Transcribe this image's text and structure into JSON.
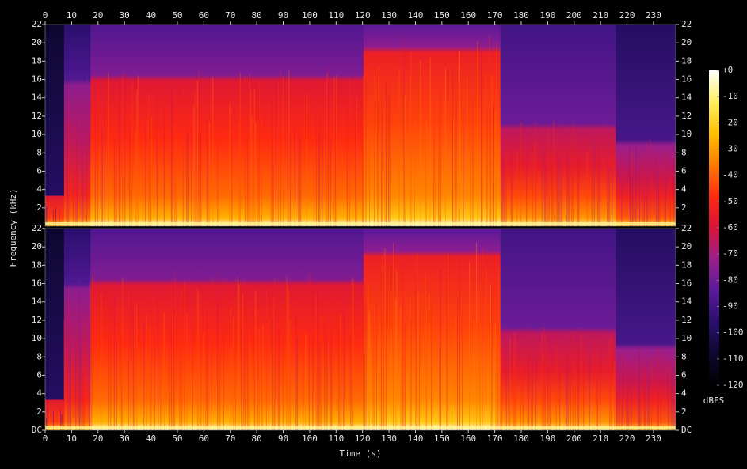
{
  "chart_data": {
    "type": "spectrogram",
    "x_label": "Time (s)",
    "y_label": "Frequency (kHz)",
    "xlim": [
      0,
      238.4
    ],
    "xticks": [
      0,
      10,
      20,
      30,
      40,
      50,
      60,
      70,
      80,
      90,
      100,
      110,
      120,
      130,
      140,
      150,
      160,
      170,
      180,
      190,
      200,
      210,
      220,
      230
    ],
    "panels": [
      {
        "ylim": [
          0,
          22
        ],
        "yticks": [
          2,
          4,
          6,
          8,
          10,
          12,
          14,
          16,
          18,
          20,
          22
        ]
      },
      {
        "ylim": [
          0,
          22
        ],
        "yticks": [
          {
            "value": 0,
            "label": "DC"
          },
          2,
          4,
          6,
          8,
          10,
          12,
          14,
          16,
          18,
          20,
          22
        ]
      }
    ],
    "colorbar": {
      "label": "dBFS",
      "lim": [
        -120,
        0
      ],
      "ticks": [
        {
          "value": 0,
          "label": "+0"
        },
        -10,
        -20,
        -30,
        -40,
        -50,
        -60,
        -70,
        -80,
        -90,
        -100,
        -110,
        -120
      ],
      "colormap": [
        "#000000",
        "#0e0830",
        "#2a0f6e",
        "#5a1a9a",
        "#9a1e8c",
        "#d8143a",
        "#ff2a10",
        "#ff7a00",
        "#ffc000",
        "#fff060",
        "#ffffff"
      ]
    }
  }
}
